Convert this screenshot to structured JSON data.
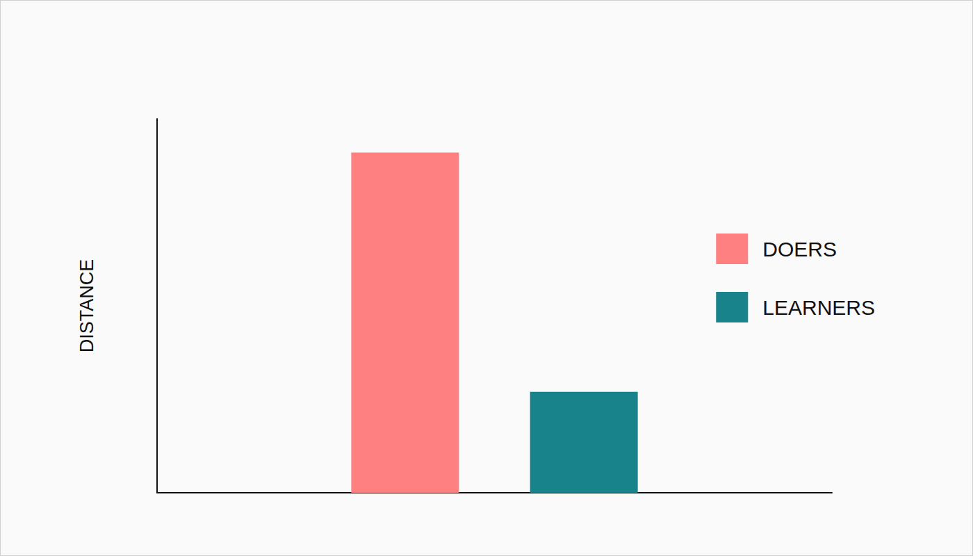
{
  "chart_data": {
    "type": "bar",
    "y_label": "DISTANCE",
    "categories": [
      null
    ],
    "series": [
      {
        "name": "DOERS",
        "color": "#ff8080",
        "values": [
          91
        ]
      },
      {
        "name": "LEARNERS",
        "color": "#18838a",
        "values": [
          27
        ]
      }
    ],
    "ylim": [
      0,
      100
    ],
    "tick_labels": false,
    "grid": false,
    "legend": "right"
  }
}
